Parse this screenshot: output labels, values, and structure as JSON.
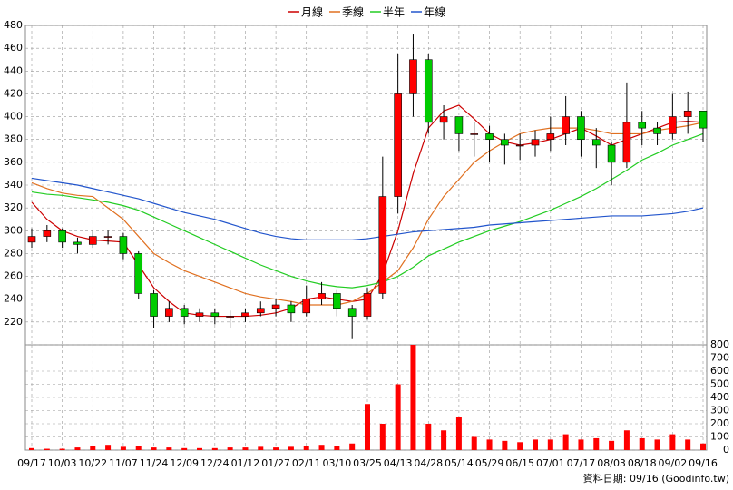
{
  "chart_data": {
    "type": "candlestick",
    "categories": [
      "09/17",
      null,
      "10/03",
      null,
      "10/22",
      null,
      "11/07",
      null,
      "11/24",
      null,
      "12/09",
      null,
      "12/24",
      null,
      "01/12",
      null,
      "01/27",
      null,
      "02/11",
      null,
      "03/10",
      null,
      "03/25",
      null,
      "04/13",
      null,
      "04/28",
      null,
      "05/14",
      null,
      "05/29",
      null,
      "06/15",
      null,
      "07/01",
      null,
      "07/17",
      null,
      "08/03",
      null,
      "08/18",
      null,
      "09/02",
      null,
      "09/16"
    ],
    "open": [
      290,
      295,
      300,
      290,
      288,
      295,
      295,
      280,
      245,
      225,
      232,
      225,
      228,
      225,
      225,
      228,
      232,
      235,
      228,
      240,
      245,
      232,
      225,
      245,
      330,
      420,
      450,
      395,
      400,
      385,
      385,
      380,
      375,
      375,
      380,
      385,
      400,
      380,
      375,
      360,
      395,
      390,
      385,
      400,
      405
    ],
    "high": [
      302,
      305,
      302,
      294,
      300,
      300,
      298,
      282,
      248,
      238,
      235,
      232,
      232,
      230,
      232,
      238,
      240,
      238,
      252,
      255,
      248,
      235,
      250,
      365,
      455,
      472,
      455,
      410,
      400,
      395,
      392,
      385,
      385,
      388,
      400,
      418,
      405,
      390,
      378,
      430,
      405,
      395,
      420,
      422,
      405
    ],
    "low": [
      285,
      290,
      285,
      280,
      285,
      288,
      275,
      240,
      215,
      220,
      218,
      220,
      218,
      215,
      220,
      225,
      225,
      220,
      225,
      235,
      225,
      205,
      222,
      240,
      315,
      400,
      385,
      380,
      370,
      365,
      360,
      358,
      362,
      365,
      370,
      375,
      365,
      355,
      340,
      355,
      375,
      375,
      380,
      385,
      378
    ],
    "close": [
      295,
      300,
      290,
      288,
      295,
      295,
      280,
      245,
      225,
      232,
      225,
      228,
      225,
      225,
      228,
      232,
      235,
      228,
      240,
      245,
      232,
      225,
      245,
      330,
      420,
      450,
      395,
      400,
      385,
      385,
      380,
      375,
      375,
      380,
      385,
      400,
      380,
      375,
      360,
      395,
      390,
      385,
      400,
      405,
      390
    ],
    "up_color": "#ff0000",
    "down_color": "#00cc00",
    "series": [
      {
        "name": "月線",
        "color": "#cc0000",
        "values": [
          325,
          310,
          300,
          295,
          292,
          291,
          290,
          270,
          250,
          238,
          228,
          226,
          225,
          225,
          225,
          226,
          228,
          232,
          240,
          242,
          240,
          238,
          240,
          262,
          300,
          350,
          390,
          405,
          410,
          398,
          385,
          378,
          375,
          377,
          380,
          385,
          390,
          383,
          375,
          380,
          385,
          390,
          395,
          396,
          395
        ]
      },
      {
        "name": "季線",
        "color": "#e07020",
        "values": [
          342,
          337,
          333,
          331,
          330,
          320,
          310,
          295,
          280,
          272,
          265,
          260,
          255,
          250,
          245,
          242,
          240,
          238,
          235,
          235,
          235,
          238,
          245,
          255,
          265,
          285,
          310,
          330,
          345,
          360,
          370,
          378,
          385,
          388,
          390,
          390,
          390,
          388,
          385,
          385,
          385,
          388,
          390,
          392,
          395
        ]
      },
      {
        "name": "半年",
        "color": "#22cc22",
        "values": [
          334,
          332,
          331,
          329,
          327,
          325,
          322,
          318,
          312,
          306,
          300,
          294,
          288,
          282,
          276,
          270,
          265,
          260,
          256,
          253,
          251,
          250,
          252,
          255,
          260,
          268,
          278,
          284,
          290,
          295,
          300,
          304,
          308,
          313,
          318,
          324,
          330,
          337,
          345,
          353,
          362,
          368,
          375,
          380,
          385
        ]
      },
      {
        "name": "年線",
        "color": "#2255cc",
        "values": [
          346,
          344,
          342,
          340,
          337,
          334,
          331,
          328,
          324,
          320,
          316,
          313,
          310,
          306,
          302,
          298,
          295,
          293,
          292,
          292,
          292,
          292,
          293,
          295,
          297,
          299,
          300,
          301,
          302,
          303,
          305,
          306,
          307,
          308,
          309,
          310,
          311,
          312,
          313,
          313,
          313,
          314,
          315,
          317,
          320
        ]
      }
    ],
    "ylim": [
      200,
      480
    ],
    "yticks": [
      220,
      240,
      260,
      280,
      300,
      320,
      340,
      360,
      380,
      400,
      420,
      440,
      460,
      480
    ],
    "grid": true,
    "volume": {
      "color": "#ff0000",
      "values": [
        15,
        10,
        10,
        20,
        30,
        40,
        25,
        30,
        20,
        20,
        15,
        15,
        15,
        20,
        20,
        25,
        20,
        25,
        30,
        40,
        30,
        50,
        350,
        200,
        500,
        800,
        200,
        150,
        250,
        100,
        80,
        70,
        60,
        80,
        80,
        120,
        80,
        90,
        70,
        150,
        90,
        80,
        120,
        80,
        50
      ],
      "ylim": [
        0,
        800
      ],
      "yticks": [
        0,
        100,
        200,
        300,
        400,
        500,
        600,
        700,
        800
      ]
    },
    "source": "資料日期: 09/16  (Goodinfo.tw)"
  }
}
